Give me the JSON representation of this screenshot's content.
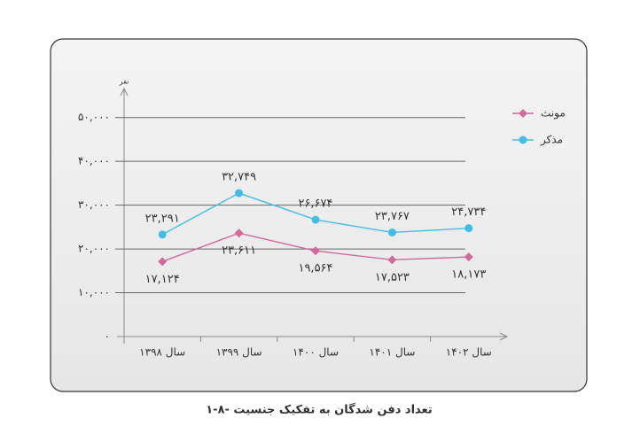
{
  "chart_data": {
    "type": "line",
    "title": "۱-۸- تعداد دفن شدگان به تفکیک جنسیت",
    "y_label": "نفر",
    "categories": [
      "سال ۱۳۹۸",
      "سال ۱۳۹۹",
      "سال ۱۴۰۰",
      "سال ۱۴۰۱",
      "سال ۱۴۰۲"
    ],
    "series": [
      {
        "name": "مونث",
        "color": "#d06a9c",
        "values": [
          17124,
          23611,
          19564,
          17523,
          18173
        ],
        "value_labels": [
          "۱۷,۱۲۴",
          "۲۳,۶۱۱",
          "۱۹,۵۶۴",
          "۱۷,۵۲۳",
          "۱۸,۱۷۳"
        ]
      },
      {
        "name": "مذکر",
        "color": "#45bde3",
        "values": [
          23291,
          32749,
          26674,
          23767,
          24734
        ],
        "value_labels": [
          "۲۳,۲۹۱",
          "۳۲,۷۴۹",
          "۲۶,۶۷۴",
          "۲۳,۷۶۷",
          "۲۴,۷۳۴"
        ]
      }
    ],
    "ylim": [
      0,
      55000
    ],
    "yticks": [
      {
        "value": 0,
        "label": "۰"
      },
      {
        "value": 10000,
        "label": "۱۰,۰۰۰"
      },
      {
        "value": 20000,
        "label": "۲۰,۰۰۰"
      },
      {
        "value": 30000,
        "label": "۳۰,۰۰۰"
      },
      {
        "value": 40000,
        "label": "۴۰,۰۰۰"
      },
      {
        "value": 50000,
        "label": "۵۰,۰۰۰"
      }
    ],
    "grid": true,
    "legend": "upper right"
  }
}
